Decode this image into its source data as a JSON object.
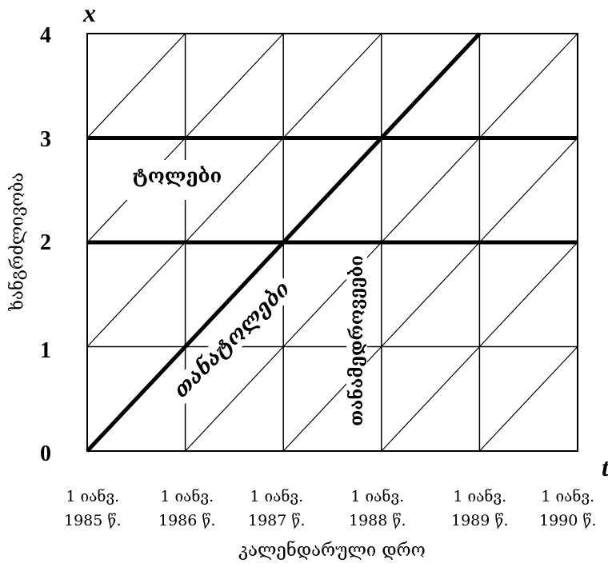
{
  "diagram": {
    "y_axis_symbol": "x",
    "x_axis_symbol": "t",
    "y_axis_title": "ხანგრძლივობა",
    "x_axis_title": "კალენდარული დრო",
    "y_ticks": [
      "0",
      "1",
      "2",
      "3",
      "4"
    ],
    "x_ticks": [
      {
        "line1": "1 იანვ.",
        "line2": "1985 წ."
      },
      {
        "line1": "1 იანვ.",
        "line2": "1986 წ."
      },
      {
        "line1": "1 იანვ.",
        "line2": "1987 წ."
      },
      {
        "line1": "1 იანვ.",
        "line2": "1988 წ."
      },
      {
        "line1": "1 იანვ.",
        "line2": "1989 წ."
      },
      {
        "line1": "1 იანვ.",
        "line2": "1990 წ."
      }
    ],
    "labels": {
      "bands": "ტოლები",
      "diagonal": "თანატოლები",
      "vertical": "თანამედროვეები"
    }
  }
}
